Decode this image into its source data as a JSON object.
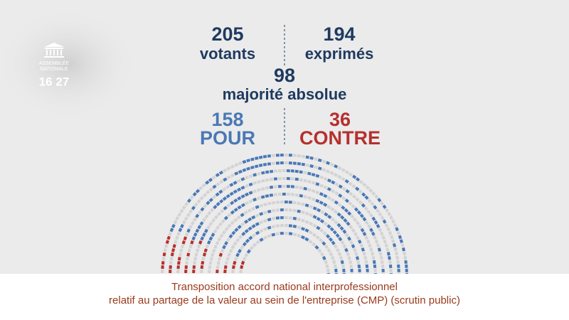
{
  "logo": {
    "lines": [
      "ASSEMBLÉE",
      "NATIONALE"
    ]
  },
  "clock": "16 27",
  "votants": {
    "value": 205,
    "label": "votants"
  },
  "exprimes": {
    "value": 194,
    "label": "exprimés"
  },
  "majorite": {
    "value": 98,
    "label": "majorité absolue"
  },
  "pour": {
    "value": 158,
    "label": "POUR"
  },
  "contre": {
    "value": 36,
    "label": "CONTRE"
  },
  "caption": {
    "lines": [
      "Transposition accord national interprofessionnel",
      "relatif au partage de la valeur au sein de l'entreprise (CMP) (scrutin public)"
    ]
  }
}
